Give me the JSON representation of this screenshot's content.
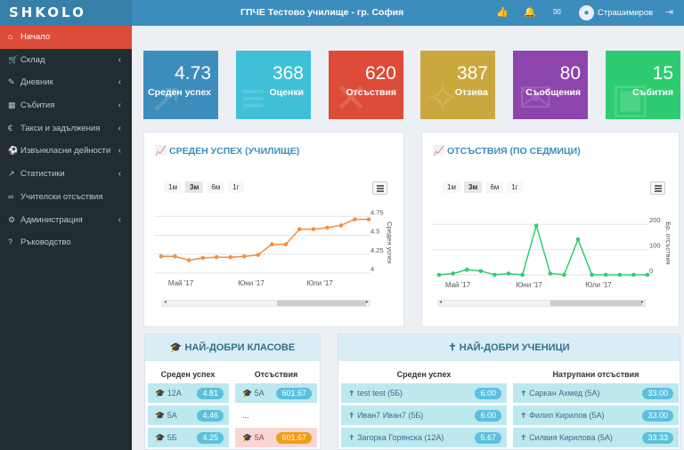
{
  "app": {
    "logo": "SHKOLO",
    "school_name": "ГПЧЕ Тестово училище - гр. София",
    "user_name": "Страшимиров"
  },
  "topbar_icons": [
    "thumbs-up-icon",
    "bell-icon",
    "envelope-icon",
    "sign-out-icon"
  ],
  "sidebar": {
    "items": [
      {
        "label": "Начало",
        "icon": "home-icon",
        "active": true,
        "has_children": false
      },
      {
        "label": "Склад",
        "icon": "cart-icon",
        "active": false,
        "has_children": true
      },
      {
        "label": "Дневник",
        "icon": "edit-icon",
        "active": false,
        "has_children": true
      },
      {
        "label": "Събития",
        "icon": "calendar-icon",
        "active": false,
        "has_children": true
      },
      {
        "label": "Такси и задължения",
        "icon": "euro-icon",
        "active": false,
        "has_children": true
      },
      {
        "label": "Извънкласни дейности",
        "icon": "futbol-icon",
        "active": false,
        "has_children": true
      },
      {
        "label": "Статистики",
        "icon": "line-chart-icon",
        "active": false,
        "has_children": true
      },
      {
        "label": "Учителски отсъствия",
        "icon": "glasses-icon",
        "active": false,
        "has_children": false
      },
      {
        "label": "Администрация",
        "icon": "cogs-icon",
        "active": false,
        "has_children": true
      },
      {
        "label": "Ръководство",
        "icon": "question-icon",
        "active": false,
        "has_children": false
      }
    ]
  },
  "stats": [
    {
      "value": "4.73",
      "label": "Среден успех",
      "color": "#3c8dbc",
      "icon": "chart-icon"
    },
    {
      "value": "368",
      "label": "Оценки",
      "color": "#40c0d8",
      "icon": "grades-icon"
    },
    {
      "value": "620",
      "label": "Отсъствия",
      "color": "#dd4b39",
      "icon": "absence-icon"
    },
    {
      "value": "387",
      "label": "Отзива",
      "color": "#c9a93e",
      "icon": "feedback-icon"
    },
    {
      "value": "80",
      "label": "Съобщения",
      "color": "#8e44ad",
      "icon": "message-icon"
    },
    {
      "value": "15",
      "label": "Събития",
      "color": "#2ecc71",
      "icon": "event-icon"
    }
  ],
  "charts": {
    "avg": {
      "title": "СРЕДЕН УСПЕХ (УЧИЛИЩЕ)",
      "ranges": [
        "1м",
        "3м",
        "6м",
        "1г"
      ],
      "selected": "3м"
    },
    "abs": {
      "title": "ОТСЪСТВИЯ (ПО СЕДМИЦИ)",
      "ranges": [
        "1м",
        "3м",
        "6м",
        "1г"
      ],
      "selected": "3м"
    }
  },
  "chart_data": [
    {
      "type": "line",
      "title": "СРЕДЕН УСПЕХ (УЧИЛИЩЕ)",
      "ylabel": "Среден успех",
      "ylim": [
        4,
        4.8
      ],
      "yticks": [
        "4.75",
        "4.5",
        "4.25",
        "4"
      ],
      "xticks": [
        "Май '17",
        "Юни '17",
        "Юли '17"
      ],
      "color": "#f28f43",
      "series": [
        {
          "values": [
            4.22,
            4.22,
            4.17,
            4.2,
            4.21,
            4.21,
            4.22,
            4.24,
            4.38,
            4.38,
            4.58,
            4.58,
            4.6,
            4.63,
            4.71,
            4.71
          ]
        }
      ]
    },
    {
      "type": "line",
      "title": "ОТСЪСТВИЯ (ПО СЕДМИЦИ)",
      "ylabel": "Бр. отсъствия",
      "ylim": [
        0,
        250
      ],
      "yticks": [
        "200",
        "100",
        "0"
      ],
      "xticks": [
        "Май '17",
        "Юни '17",
        "Юли '17"
      ],
      "color": "#2ecc71",
      "series": [
        {
          "values": [
            0,
            5,
            20,
            15,
            0,
            5,
            0,
            195,
            5,
            0,
            140,
            0,
            0,
            0,
            0,
            0
          ]
        }
      ]
    }
  ],
  "best_classes": {
    "title": "НАЙ-ДОБРИ КЛАСОВЕ",
    "col_avg": "Среден успех",
    "col_abs": "Отсъствия",
    "avg_rows": [
      {
        "name": "12А",
        "value": "4.81"
      },
      {
        "name": "5А",
        "value": "4.46"
      },
      {
        "name": "5Б",
        "value": "4.25"
      }
    ],
    "abs_rows": [
      {
        "name": "5А",
        "value": "601.67",
        "style": "cls"
      },
      {
        "name": "...",
        "value": "",
        "style": "plain"
      },
      {
        "name": "5А",
        "value": "601.67",
        "style": "warn"
      }
    ]
  },
  "best_students": {
    "title": "НАЙ-ДОБРИ УЧЕНИЦИ",
    "col_avg": "Среден успех",
    "col_abs": "Натрупани отсъствия",
    "avg_rows": [
      {
        "name": "test test (5Б)",
        "value": "6.00"
      },
      {
        "name": "Иван7 Иван7 (5Б)",
        "value": "6.00"
      },
      {
        "name": "Загорка Горянска (12А)",
        "value": "5.67"
      }
    ],
    "abs_rows": [
      {
        "name": "Саркан Ахмед (5А)",
        "value": "33.00"
      },
      {
        "name": "Филип Кирилов (5А)",
        "value": "33.00"
      },
      {
        "name": "Силвия Кирилова (5А)",
        "value": "33.33"
      }
    ]
  }
}
